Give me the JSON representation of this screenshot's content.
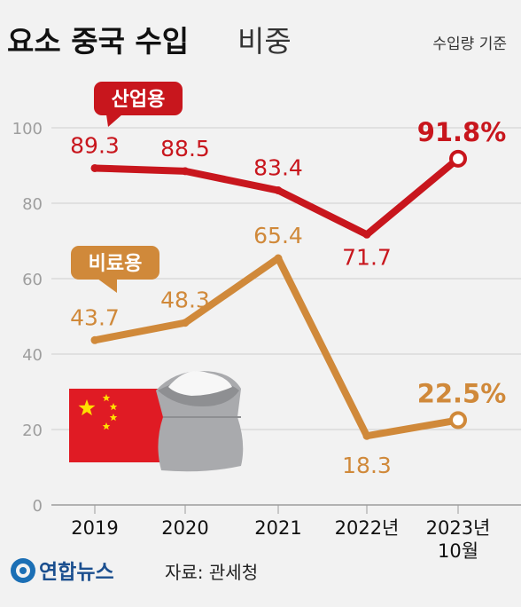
{
  "title_bold": "요소 중국 수입",
  "title_light": "비중",
  "subtitle": "수입량 기준",
  "source": "자료: 관세청",
  "logo_text": "연합뉴스",
  "chart_data": {
    "type": "line",
    "title": "요소 중국 수입 비중",
    "categories": [
      "2019",
      "2020",
      "2021",
      "2022년",
      "2023년 10월"
    ],
    "ylim": [
      0,
      100
    ],
    "yticks": [
      0,
      20,
      40,
      60,
      80,
      100
    ],
    "grid": true,
    "series": [
      {
        "name": "산업용",
        "values": [
          89.3,
          88.5,
          83.4,
          71.7,
          91.8
        ],
        "labels": [
          "89.3",
          "88.5",
          "83.4",
          "71.7",
          "91.8%"
        ],
        "color": "#c8161d"
      },
      {
        "name": "비료용",
        "values": [
          43.7,
          48.3,
          65.4,
          18.3,
          22.5
        ],
        "labels": [
          "43.7",
          "48.3",
          "65.4",
          "18.3",
          "22.5%"
        ],
        "color": "#d0893a"
      }
    ]
  }
}
